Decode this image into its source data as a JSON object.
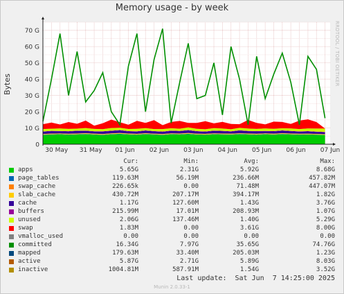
{
  "title": "Memory usage - by week",
  "watermark": "RRDTOOL / TOBI OETIKER",
  "ylabel": "Bytes",
  "footer": {
    "last_update": "Last update:  Sat Jun  7 14:25:00 2025",
    "munin_version": "Munin 2.0.33-1"
  },
  "legend_headers": {
    "cur": "Cur:",
    "min": "Min:",
    "avg": "Avg:",
    "max": "Max:"
  },
  "legend": [
    {
      "name": "apps",
      "color": "#00cc00",
      "cur": "5.65G",
      "min": "2.31G",
      "avg": "5.92G",
      "max": "8.68G"
    },
    {
      "name": "page_tables",
      "color": "#0066b3",
      "cur": "119.63M",
      "min": "56.19M",
      "avg": "236.66M",
      "max": "457.82M"
    },
    {
      "name": "swap_cache",
      "color": "#ff8000",
      "cur": "226.65k",
      "min": "0.00",
      "avg": "71.48M",
      "max": "447.07M"
    },
    {
      "name": "slab_cache",
      "color": "#ffcc00",
      "cur": "430.72M",
      "min": "207.17M",
      "avg": "394.17M",
      "max": "1.82G"
    },
    {
      "name": "cache",
      "color": "#330099",
      "cur": "1.17G",
      "min": "127.60M",
      "avg": "1.43G",
      "max": "3.76G"
    },
    {
      "name": "buffers",
      "color": "#990099",
      "cur": "215.99M",
      "min": "17.01M",
      "avg": "208.93M",
      "max": "1.07G"
    },
    {
      "name": "unused",
      "color": "#ccff00",
      "cur": "2.06G",
      "min": "137.46M",
      "avg": "1.40G",
      "max": "5.29G"
    },
    {
      "name": "swap",
      "color": "#ff0000",
      "cur": "1.83M",
      "min": "0.00",
      "avg": "3.61G",
      "max": "8.00G"
    },
    {
      "name": "vmalloc_used",
      "color": "#808080",
      "cur": "0.00",
      "min": "0.00",
      "avg": "0.00",
      "max": "0.00"
    },
    {
      "name": "committed",
      "color": "#008f00",
      "cur": "16.34G",
      "min": "7.97G",
      "avg": "35.65G",
      "max": "74.76G"
    },
    {
      "name": "mapped",
      "color": "#00487d",
      "cur": "179.63M",
      "min": "33.40M",
      "avg": "205.03M",
      "max": "1.23G"
    },
    {
      "name": "active",
      "color": "#b35a00",
      "cur": "5.87G",
      "min": "2.71G",
      "avg": "5.89G",
      "max": "8.03G"
    },
    {
      "name": "inactive",
      "color": "#b38f00",
      "cur": "1004.81M",
      "min": "587.91M",
      "avg": "1.54G",
      "max": "3.52G"
    }
  ],
  "chart_data": {
    "type": "area",
    "title": "Memory usage - by week",
    "ylabel": "Bytes",
    "y_unit": "G",
    "ylim": [
      0,
      75
    ],
    "y_ticks": [
      0,
      10,
      20,
      30,
      40,
      50,
      60,
      70
    ],
    "y_tick_labels": [
      "0",
      "10 G",
      "20 G",
      "30 G",
      "40 G",
      "50 G",
      "60 G",
      "70 G"
    ],
    "x_ticks": [
      "30 May",
      "31 May",
      "01 Jun",
      "02 Jun",
      "03 Jun",
      "04 Jun",
      "05 Jun",
      "06 Jun",
      "07 Jun"
    ],
    "grid": true,
    "stacked_series_order": [
      "apps",
      "page_tables",
      "swap_cache",
      "slab_cache",
      "cache",
      "buffers",
      "unused",
      "swap",
      "vmalloc_used"
    ],
    "x_positions_days": [
      0,
      0.25,
      0.5,
      0.75,
      1,
      1.25,
      1.5,
      1.75,
      2,
      2.25,
      2.5,
      2.75,
      3,
      3.25,
      3.5,
      3.75,
      4,
      4.25,
      4.5,
      4.75,
      5,
      5.25,
      5.5,
      5.75,
      6,
      6.25,
      6.5,
      6.75,
      7,
      7.25,
      7.5,
      7.75,
      8,
      8.25
    ],
    "series": [
      {
        "name": "apps",
        "color": "#00cc00",
        "values": [
          5.6,
          5.8,
          6.0,
          5.7,
          5.9,
          6.1,
          5.8,
          5.6,
          6.0,
          6.2,
          5.9,
          5.7,
          6.1,
          5.8,
          5.6,
          6.0,
          5.9,
          6.2,
          5.8,
          5.7,
          6.0,
          5.9,
          5.8,
          6.1,
          5.9,
          5.7,
          6.0,
          5.8,
          6.1,
          5.9,
          5.7,
          5.8,
          5.7,
          5.65
        ]
      },
      {
        "name": "page_tables",
        "color": "#0066b3",
        "values": [
          0.24,
          0.25,
          0.23,
          0.24,
          0.22,
          0.25,
          0.24,
          0.23,
          0.25,
          0.24,
          0.23,
          0.22,
          0.24,
          0.25,
          0.23,
          0.24,
          0.25,
          0.23,
          0.24,
          0.22,
          0.25,
          0.24,
          0.23,
          0.24,
          0.25,
          0.23,
          0.24,
          0.22,
          0.24,
          0.23,
          0.25,
          0.24,
          0.2,
          0.12
        ]
      },
      {
        "name": "swap_cache",
        "color": "#ff8000",
        "values": [
          0.07,
          0.08,
          0.06,
          0.07,
          0.07,
          0.08,
          0.06,
          0.07,
          0.08,
          0.07,
          0.06,
          0.07,
          0.08,
          0.07,
          0.06,
          0.07,
          0.07,
          0.08,
          0.06,
          0.07,
          0.07,
          0.08,
          0.06,
          0.07,
          0.07,
          0.08,
          0.06,
          0.07,
          0.07,
          0.06,
          0.07,
          0.05,
          0.02,
          0.0
        ]
      },
      {
        "name": "slab_cache",
        "color": "#ffcc00",
        "values": [
          0.4,
          0.4,
          0.38,
          0.41,
          0.39,
          0.4,
          0.42,
          0.38,
          0.4,
          0.39,
          0.41,
          0.4,
          0.38,
          0.4,
          0.41,
          0.39,
          0.4,
          0.42,
          0.38,
          0.4,
          0.39,
          0.41,
          0.4,
          0.38,
          0.4,
          0.41,
          0.39,
          0.4,
          0.4,
          0.39,
          0.41,
          0.4,
          0.42,
          0.43
        ]
      },
      {
        "name": "cache",
        "color": "#330099",
        "values": [
          1.4,
          1.5,
          1.3,
          1.4,
          1.6,
          1.4,
          1.3,
          1.5,
          1.4,
          1.6,
          1.3,
          1.4,
          1.5,
          1.4,
          1.3,
          1.5,
          1.4,
          1.6,
          1.4,
          1.3,
          1.5,
          1.4,
          1.3,
          1.6,
          1.4,
          1.5,
          1.3,
          1.4,
          1.5,
          1.4,
          1.3,
          1.4,
          1.2,
          1.17
        ]
      },
      {
        "name": "buffers",
        "color": "#990099",
        "values": [
          0.2,
          0.21,
          0.2,
          0.22,
          0.2,
          0.21,
          0.19,
          0.2,
          0.22,
          0.21,
          0.2,
          0.19,
          0.21,
          0.2,
          0.22,
          0.21,
          0.2,
          0.19,
          0.21,
          0.2,
          0.22,
          0.21,
          0.2,
          0.19,
          0.21,
          0.2,
          0.22,
          0.21,
          0.2,
          0.21,
          0.19,
          0.2,
          0.21,
          0.22
        ]
      },
      {
        "name": "unused",
        "color": "#ccff00",
        "values": [
          1.4,
          1.3,
          1.5,
          1.4,
          1.2,
          1.5,
          1.4,
          1.3,
          1.6,
          1.4,
          1.3,
          1.5,
          1.4,
          1.2,
          1.5,
          1.4,
          1.3,
          1.6,
          1.4,
          1.3,
          1.5,
          1.4,
          1.2,
          1.5,
          1.4,
          1.3,
          1.5,
          1.4,
          1.3,
          1.5,
          1.4,
          1.6,
          1.9,
          2.06
        ]
      },
      {
        "name": "swap",
        "color": "#ff0000",
        "values": [
          3.0,
          3.8,
          2.5,
          4.2,
          3.0,
          4.6,
          2.0,
          3.6,
          5.2,
          3.4,
          2.6,
          4.9,
          3.2,
          5.5,
          2.4,
          3.9,
          4.8,
          2.8,
          3.6,
          5.0,
          2.9,
          4.1,
          3.3,
          2.2,
          5.3,
          3.7,
          2.5,
          4.4,
          3.9,
          2.8,
          5.2,
          5.6,
          4.0,
          0.0
        ]
      },
      {
        "name": "vmalloc_used",
        "color": "#808080",
        "values": [
          0,
          0,
          0,
          0,
          0,
          0,
          0,
          0,
          0,
          0,
          0,
          0,
          0,
          0,
          0,
          0,
          0,
          0,
          0,
          0,
          0,
          0,
          0,
          0,
          0,
          0,
          0,
          0,
          0,
          0,
          0,
          0,
          0,
          0
        ]
      },
      {
        "name": "committed",
        "color": "#008f00",
        "values": [
          14,
          40,
          68,
          30,
          57,
          26,
          33,
          44,
          20,
          12,
          48,
          68,
          20,
          52,
          71,
          13,
          38,
          62,
          28,
          30,
          50,
          18,
          60,
          40,
          12,
          54,
          28,
          43,
          56,
          38,
          12,
          54,
          46,
          16
        ]
      }
    ]
  }
}
